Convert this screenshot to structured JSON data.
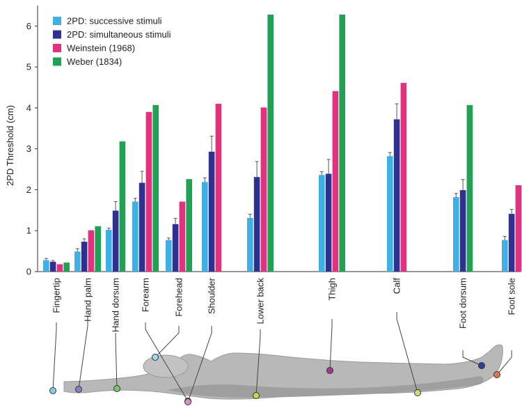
{
  "chart_data": {
    "type": "bar",
    "title": "",
    "xlabel": "",
    "ylabel": "2PD Threshold (cm)",
    "ylim": [
      0,
      6.5
    ],
    "yticks": [
      0,
      1,
      2,
      3,
      4,
      5,
      6
    ],
    "legend_placement": "top-left",
    "grid": false,
    "categories": [
      "Fingertip",
      "Hand palm",
      "Hand dorsum",
      "Forearm",
      "Forehead",
      "Shoulder",
      "Lower back",
      "Thigh",
      "Calf",
      "Foot dorsum",
      "Foot sole"
    ],
    "series": [
      {
        "name": "2PD: successive stimuli",
        "color": "#3fb0e4",
        "values": [
          0.28,
          0.49,
          1.02,
          1.71,
          0.77,
          2.19,
          1.31,
          2.36,
          2.82,
          1.82,
          0.77
        ],
        "errors": [
          0.04,
          0.07,
          0.04,
          0.08,
          0.05,
          0.1,
          0.09,
          0.08,
          0.09,
          0.09,
          0.09
        ]
      },
      {
        "name": "2PD: simultaneous stimuli",
        "color": "#2e3190",
        "values": [
          0.24,
          0.73,
          1.49,
          2.17,
          1.16,
          2.93,
          2.31,
          2.39,
          3.72,
          1.99,
          1.41
        ],
        "errors": [
          0.03,
          0.07,
          0.22,
          0.28,
          0.14,
          0.38,
          0.38,
          0.35,
          0.38,
          0.26,
          0.11
        ]
      },
      {
        "name": "Weinstein (1968)",
        "color": "#e5307d",
        "values": [
          0.18,
          1.01,
          null,
          3.9,
          1.71,
          4.1,
          4.01,
          4.41,
          4.61,
          null,
          2.11
        ],
        "errors": []
      },
      {
        "name": "Weber (1834)",
        "color": "#1fa253",
        "values": [
          0.22,
          1.11,
          3.18,
          4.07,
          2.26,
          null,
          6.28,
          6.28,
          null,
          4.07,
          null
        ],
        "errors": []
      }
    ],
    "body_markers": [
      {
        "label": "Fingertip",
        "color": "#7fd0e6"
      },
      {
        "label": "Hand palm",
        "color": "#8a7dc9"
      },
      {
        "label": "Hand dorsum",
        "color": "#7cc36a"
      },
      {
        "label": "Forearm",
        "color": "#c97db2"
      },
      {
        "label": "Forehead",
        "color": "#9fd6f0"
      },
      {
        "label": "Shoulder",
        "color": "#d98fc0"
      },
      {
        "label": "Lower back",
        "color": "#c9d64a"
      },
      {
        "label": "Thigh",
        "color": "#a03a8a"
      },
      {
        "label": "Calf",
        "color": "#c9e07a"
      },
      {
        "label": "Foot dorsum",
        "color": "#2c3f9a"
      },
      {
        "label": "Foot sole",
        "color": "#e07a4a"
      }
    ]
  }
}
